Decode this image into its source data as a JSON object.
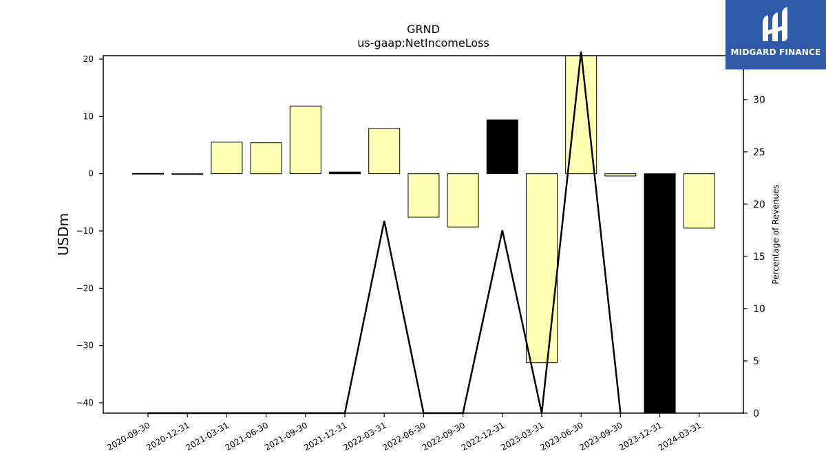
{
  "chart_data": {
    "type": "bar",
    "title": "GRND",
    "subtitle": "us-gaap:NetIncomeLoss",
    "ylabel": "USDm",
    "y2label": "Percentage of Revenues",
    "ylim": [
      -41.8,
      20.6
    ],
    "y2lim": [
      0,
      34.2
    ],
    "yticks": [
      20,
      10,
      0,
      -10,
      -20,
      -30,
      -40
    ],
    "y2ticks": [
      0,
      5,
      10,
      15,
      20,
      25,
      30
    ],
    "categories": [
      "2020-09-30",
      "2020-12-31",
      "2021-03-31",
      "2021-06-30",
      "2021-09-30",
      "2021-12-31",
      "2022-03-31",
      "2022-06-30",
      "2022-09-30",
      "2022-12-31",
      "2023-03-31",
      "2023-06-30",
      "2023-09-30",
      "2023-12-31",
      "2024-03-31"
    ],
    "series": [
      {
        "kind": "bar",
        "values": [
          0.05,
          -0.1,
          5.5,
          5.4,
          11.8,
          0.3,
          7.9,
          -7.6,
          -9.3,
          9.4,
          -33.0,
          27.0,
          -0.4,
          -42.0,
          -9.5
        ],
        "colors": [
          "#ffffb3",
          "#ffffb3",
          "#ffffb3",
          "#ffffb3",
          "#ffffb3",
          "#000000",
          "#ffffb3",
          "#ffffb3",
          "#ffffb3",
          "#000000",
          "#ffffb3",
          "#ffffb3",
          "#ffffb3",
          "#000000",
          "#ffffb3"
        ]
      },
      {
        "kind": "line",
        "axis": "right",
        "values": [
          0,
          0,
          0,
          0,
          0,
          0,
          18.4,
          0,
          0,
          17.5,
          0,
          34.5,
          0,
          null,
          null
        ]
      }
    ],
    "colors": {
      "bar": "#ffffb3",
      "bar_highlight": "#000000",
      "line": "#000000"
    }
  },
  "logo": {
    "text": "MIDGARD FINANCE"
  }
}
